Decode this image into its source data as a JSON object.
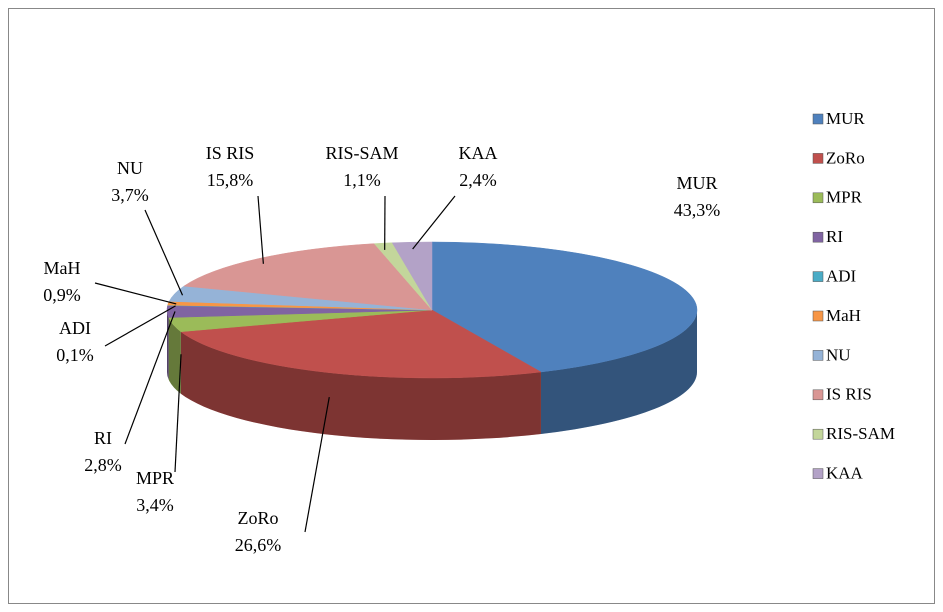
{
  "chart_data": {
    "type": "pie",
    "categories": [
      "MUR",
      "ZoRo",
      "MPR",
      "RI",
      "ADI",
      "MaH",
      "NU",
      "IS RIS",
      "RIS-SAM",
      "KAA"
    ],
    "values": [
      43.3,
      26.6,
      3.4,
      2.8,
      0.1,
      0.9,
      3.7,
      15.8,
      1.1,
      2.4
    ],
    "value_labels": [
      "43,3%",
      "26,6%",
      "3,4%",
      "2,8%",
      "0,1%",
      "0,9%",
      "3,7%",
      "15,8%",
      "1,1%",
      "2,4%"
    ],
    "colors": [
      "#4f81bd",
      "#c0504d",
      "#9bbb59",
      "#8064a2",
      "#4bacc6",
      "#f79646",
      "#95b3d7",
      "#d99694",
      "#c3d69b",
      "#b3a2c7"
    ],
    "legend": "right"
  }
}
